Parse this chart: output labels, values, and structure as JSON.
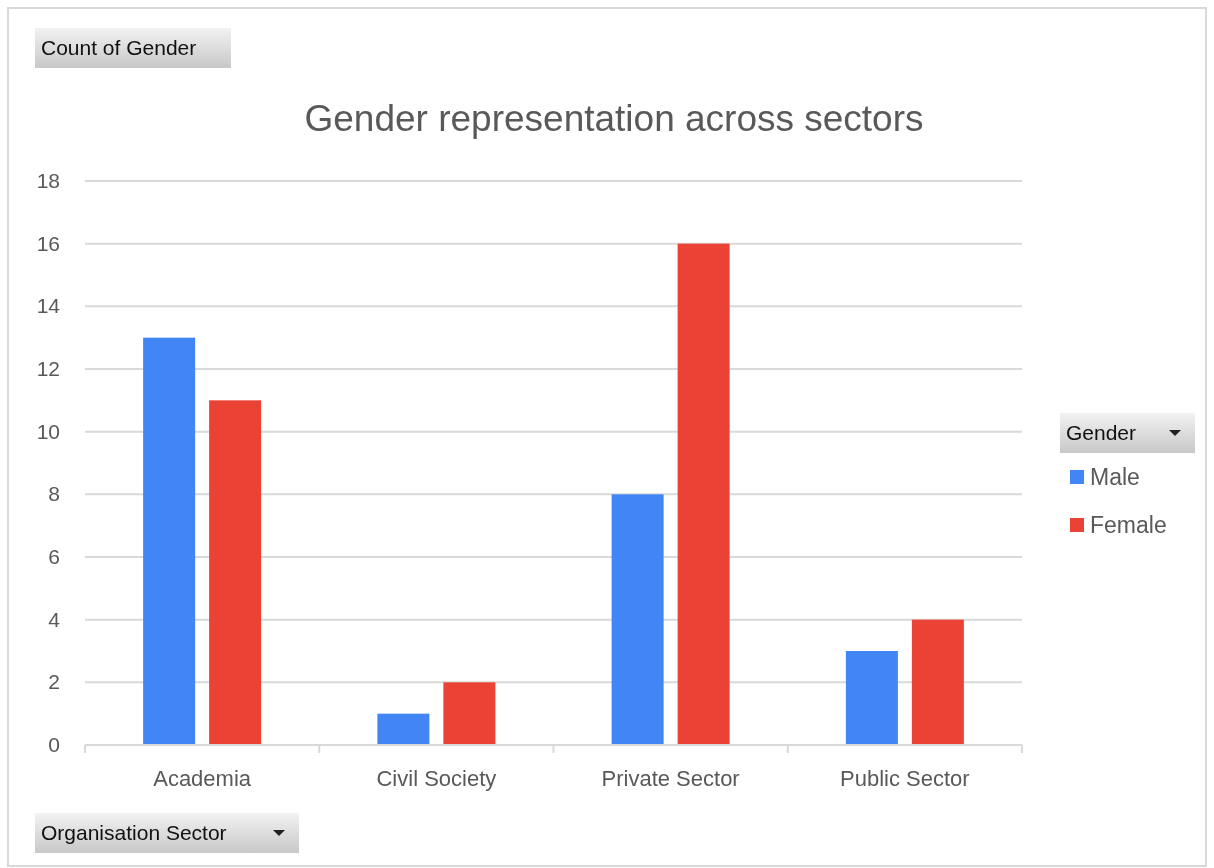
{
  "chart_data": {
    "type": "bar",
    "title": "Gender representation across sectors",
    "annotations": [
      "Count of Gender"
    ],
    "xlabel": "Organisation Sector",
    "legend_title": "Gender",
    "categories": [
      "Academia",
      "Civil Society",
      "Private Sector",
      "Public Sector"
    ],
    "series": [
      {
        "name": "Male",
        "color": "#4285f4",
        "values": [
          13,
          1,
          8,
          3
        ]
      },
      {
        "name": "Female",
        "color": "#ea4335",
        "values": [
          11,
          2,
          16,
          4
        ]
      }
    ],
    "ylim": [
      0,
      18
    ],
    "yticks": [
      0,
      2,
      4,
      6,
      8,
      10,
      12,
      14,
      16,
      18
    ],
    "grid": "y",
    "legend": "right"
  }
}
